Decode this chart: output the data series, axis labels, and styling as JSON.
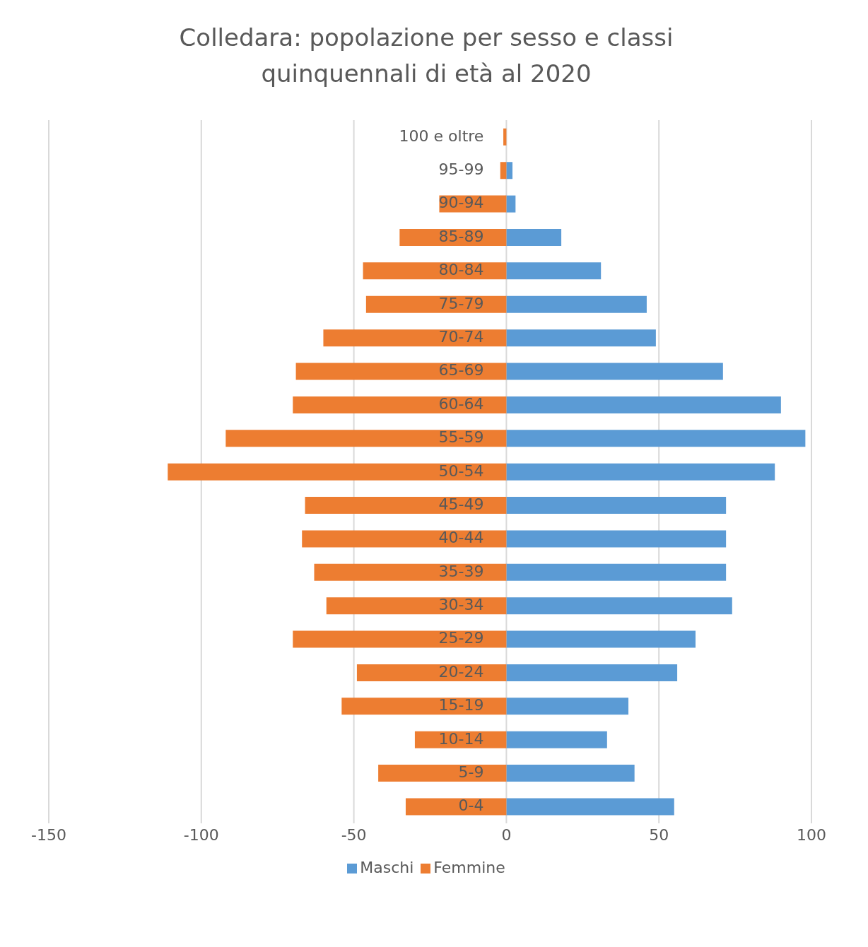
{
  "chart_data": {
    "type": "bar",
    "orientation": "horizontal",
    "stacked": true,
    "title": "Colledara: popolazione per sesso e classi quinquennali di età al 2020",
    "categories": [
      "100 e oltre",
      "95-99",
      "90-94",
      "85-89",
      "80-84",
      "75-79",
      "70-74",
      "65-69",
      "60-64",
      "55-59",
      "50-54",
      "45-49",
      "40-44",
      "35-39",
      "30-34",
      "25-29",
      "20-24",
      "15-19",
      "10-14",
      "5-9",
      "0-4"
    ],
    "series": [
      {
        "name": "Maschi",
        "color": "#5b9bd5",
        "values": [
          null,
          2,
          3,
          18,
          31,
          46,
          49,
          71,
          90,
          98,
          88,
          72,
          72,
          72,
          74,
          62,
          56,
          40,
          33,
          42,
          55
        ]
      },
      {
        "name": "Femmine",
        "color": "#ed7d31",
        "values": [
          -1,
          -2,
          -22,
          -35,
          -47,
          -46,
          -60,
          -69,
          -70,
          -92,
          -111,
          -66,
          -67,
          -63,
          -59,
          -70,
          -49,
          -54,
          -30,
          -42,
          -33
        ]
      }
    ],
    "xlim": [
      -150,
      100
    ],
    "xticks": [
      -150,
      -100,
      -50,
      0,
      50,
      100
    ],
    "grid": "x",
    "legend": "bottom"
  }
}
